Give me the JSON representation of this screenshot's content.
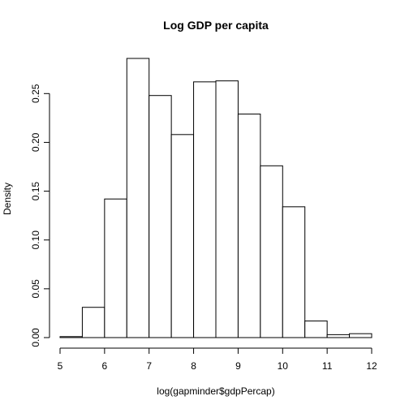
{
  "chart_data": {
    "type": "bar",
    "title": "Log GDP per capita",
    "xlabel": "log(gapminder$gdpPercap)",
    "ylabel": "Density",
    "bin_edges": [
      5.0,
      5.5,
      6.0,
      6.5,
      7.0,
      7.5,
      8.0,
      8.5,
      9.0,
      9.5,
      10.0,
      10.5,
      11.0,
      11.5,
      12.0
    ],
    "values": [
      0.001,
      0.031,
      0.142,
      0.286,
      0.248,
      0.208,
      0.262,
      0.263,
      0.229,
      0.176,
      0.134,
      0.017,
      0.003,
      0.004
    ],
    "xlim": [
      5,
      12
    ],
    "ylim": [
      0,
      0.286
    ],
    "x_ticks": [
      5,
      6,
      7,
      8,
      9,
      10,
      11,
      12
    ],
    "x_tick_labels": [
      "5",
      "6",
      "7",
      "8",
      "9",
      "10",
      "11",
      "12"
    ],
    "y_ticks": [
      0,
      0.05,
      0.1,
      0.15,
      0.2,
      0.25
    ],
    "y_tick_labels": [
      "0.00",
      "0.05",
      "0.10",
      "0.15",
      "0.20",
      "0.25"
    ],
    "grid": false,
    "legend": "none"
  }
}
